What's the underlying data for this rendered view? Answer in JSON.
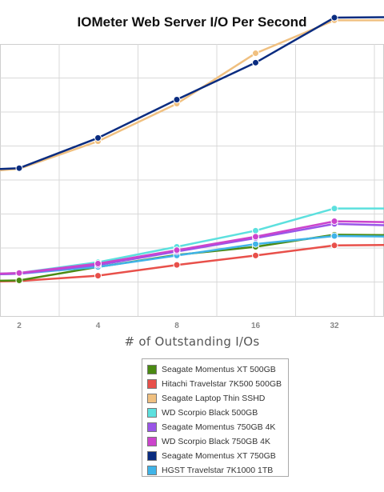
{
  "chart_data": {
    "type": "line",
    "title": "IOMeter Web Server I/O Per Second",
    "xlabel": "# of Outstanding I/Os",
    "ylabel": "",
    "x_scale": "log2",
    "x_ticks": [
      2,
      4,
      8,
      16,
      32
    ],
    "x_tick_labels": [
      "2",
      "4",
      "8",
      "16",
      "32"
    ],
    "x": [
      1,
      2,
      4,
      8,
      16,
      32,
      64
    ],
    "grid": true,
    "legend_position": "bottom",
    "series": [
      {
        "name": "Seagate Momentus XT 500GB",
        "color": "#4a8a12",
        "values": [
          9.1,
          9.3,
          11.3,
          13.1,
          14.3,
          16.1,
          16.0
        ]
      },
      {
        "name": "Hitachi Travelstar 7K500 500GB",
        "color": "#e8504a",
        "values": [
          9.0,
          9.2,
          10.0,
          11.6,
          13.0,
          14.5,
          14.6
        ]
      },
      {
        "name": "Seagate Laptop Thin SSHD",
        "color": "#f0c080",
        "values": [
          25.0,
          25.9,
          30.0,
          35.6,
          43.1,
          48.0,
          48.0
        ]
      },
      {
        "name": "WD Scorpio Black 500GB",
        "color": "#5ce0de",
        "values": [
          10.0,
          10.4,
          12.0,
          14.3,
          16.7,
          20.0,
          20.0
        ]
      },
      {
        "name": "Seagate Momentus 750GB 4K",
        "color": "#9a55e8",
        "values": [
          10.0,
          10.3,
          11.6,
          13.6,
          15.6,
          17.7,
          17.4
        ]
      },
      {
        "name": "WD Scorpio Black 750GB 4K",
        "color": "#cc44cc",
        "values": [
          10.0,
          10.4,
          11.8,
          13.8,
          15.8,
          18.1,
          17.9
        ]
      },
      {
        "name": "Seagate Momentus XT 750GB",
        "color": "#0a2c80",
        "values": [
          25.5,
          26.0,
          30.5,
          36.2,
          41.7,
          48.4,
          48.5
        ]
      },
      {
        "name": "HGST Travelstar 7K1000 1TB",
        "color": "#40b4e8",
        "values": [
          10.0,
          10.3,
          11.3,
          13.0,
          14.7,
          15.9,
          15.8
        ]
      }
    ]
  }
}
